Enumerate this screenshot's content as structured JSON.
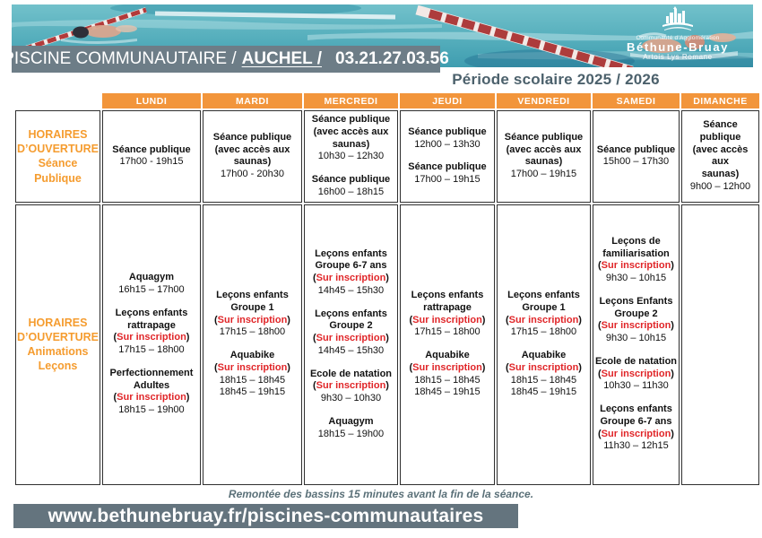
{
  "header": {
    "facility": "PISCINE COMMUNAUTAIRE /",
    "name": "AUCHEL /",
    "phone": "03.21.27.03.56",
    "logo": {
      "line1": "Communauté d’Agglomération",
      "line2": "Béthune-Bruay",
      "line3": "Artois Lys Romane"
    },
    "period": "Période scolaire 2025 / 2026"
  },
  "colors": {
    "orange": "#f2953b",
    "slate_banner": "#6d7d87",
    "red_inscription": "#e02528",
    "gray_empty_cell": "#d9d9d9"
  },
  "table": {
    "days": [
      "LUNDI",
      "MARDI",
      "MERCREDI",
      "JEUDI",
      "VENDREDI",
      "SAMEDI",
      "DIMANCHE"
    ],
    "sections": [
      {
        "label": "HORAIRES\nD’OUVERTURE\nSéance\nPublique",
        "cells": [
          [
            {
              "title": "Séance publique",
              "times": [
                "17h00 - 19h15"
              ]
            }
          ],
          [
            {
              "title": "Séance publique\n(avec accès aux\nsaunas)",
              "times": [
                "17h00 - 20h30"
              ]
            }
          ],
          [
            {
              "title": "Séance publique\n(avec accès aux\nsaunas)",
              "times": [
                "10h30 – 12h30"
              ]
            },
            {
              "title": "Séance publique",
              "times": [
                "16h00 – 18h15"
              ]
            }
          ],
          [
            {
              "title": "Séance publique",
              "times": [
                "12h00 – 13h30"
              ]
            },
            {
              "title": "Séance publique",
              "times": [
                "17h00 – 19h15"
              ]
            }
          ],
          [
            {
              "title": "Séance publique\n(avec accès aux\nsaunas)",
              "times": [
                "17h00 – 19h15"
              ]
            }
          ],
          [
            {
              "title": "Séance publique",
              "times": [
                "15h00 – 17h30"
              ]
            }
          ],
          [
            {
              "title": "Séance publique\n(avec accès aux\nsaunas)",
              "times": [
                "9h00 – 12h00"
              ]
            }
          ]
        ]
      },
      {
        "label": "HORAIRES\nD’OUVERTURE\nAnimations\nLeçons",
        "cells": [
          [
            {
              "title": "Aquagym",
              "times": [
                "16h15 – 17h00"
              ]
            },
            {
              "title": "Leçons enfants\nrattrapage",
              "note": "Sur inscription",
              "times": [
                "17h15 – 18h00"
              ]
            },
            {
              "title": "Perfectionnement\nAdultes",
              "note": "Sur inscription",
              "times": [
                "18h15 – 19h00"
              ]
            }
          ],
          [
            {
              "title": "Leçons enfants\nGroupe 1",
              "note": "Sur inscription",
              "times": [
                "17h15 – 18h00"
              ]
            },
            {
              "title": "Aquabike",
              "note": "Sur inscription",
              "times": [
                "18h15 – 18h45",
                "18h45 – 19h15"
              ]
            }
          ],
          [
            {
              "title": "Leçons enfants\nGroupe 6-7 ans",
              "note": "Sur inscription",
              "times": [
                "14h45 – 15h30"
              ]
            },
            {
              "title": "Leçons enfants\nGroupe 2",
              "note": "Sur inscription",
              "times": [
                "14h45 – 15h30"
              ]
            },
            {
              "title": "Ecole de natation",
              "note": "Sur inscription",
              "times": [
                "9h30 – 10h30"
              ]
            },
            {
              "title": "Aquagym",
              "times": [
                "18h15 – 19h00"
              ]
            }
          ],
          [
            {
              "title": "Leçons enfants\nrattrapage",
              "note": "Sur inscription",
              "times": [
                "17h15 – 18h00"
              ]
            },
            {
              "title": "Aquabike",
              "note": "Sur inscription",
              "times": [
                "18h15 – 18h45",
                "18h45 – 19h15"
              ]
            }
          ],
          [
            {
              "title": "Leçons enfants\nGroupe 1",
              "note": "Sur inscription",
              "times": [
                "17h15 – 18h00"
              ]
            },
            {
              "title": "Aquabike",
              "note": "Sur inscription",
              "times": [
                "18h15 – 18h45",
                "18h45 – 19h15"
              ]
            }
          ],
          [
            {
              "title": "Leçons de\nfamiliarisation",
              "note": "Sur inscription",
              "times": [
                "9h30 – 10h15"
              ]
            },
            {
              "title": "Leçons Enfants\nGroupe 2",
              "note": "Sur inscription",
              "times": [
                "9h30 – 10h15"
              ]
            },
            {
              "title": "Ecole de natation",
              "note": "Sur inscription",
              "times": [
                "10h30 – 11h30"
              ]
            },
            {
              "title": "Leçons enfants\nGroupe 6-7 ans",
              "note": "Sur inscription",
              "times": [
                "11h30 – 12h15"
              ]
            }
          ],
          []
        ]
      }
    ]
  },
  "footer": {
    "note": "Remontée des bassins 15 minutes avant la fin de la séance.",
    "url": "www.bethunebruay.fr/piscines-communautaires"
  }
}
